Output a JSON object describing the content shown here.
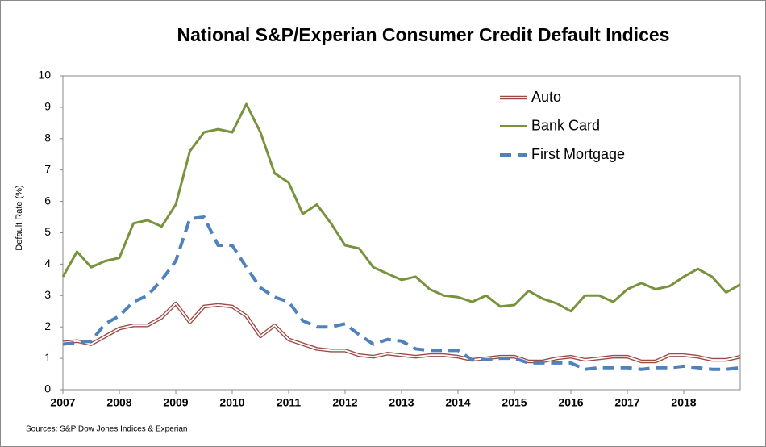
{
  "chart_data": {
    "type": "line",
    "title": "National S&P/Experian Consumer Credit Default Indices",
    "y_label": "Default Rate (%)",
    "source": "Sources: S&P Dow Jones Indices & Experian",
    "x": [
      2007,
      2007.25,
      2007.5,
      2007.75,
      2008,
      2008.25,
      2008.5,
      2008.75,
      2009,
      2009.25,
      2009.5,
      2009.75,
      2010,
      2010.25,
      2010.5,
      2010.75,
      2011,
      2011.25,
      2011.5,
      2011.75,
      2012,
      2012.25,
      2012.5,
      2012.75,
      2013,
      2013.25,
      2013.5,
      2013.75,
      2014,
      2014.25,
      2014.5,
      2014.75,
      2015,
      2015.25,
      2015.5,
      2015.75,
      2016,
      2016.25,
      2016.5,
      2016.75,
      2017,
      2017.25,
      2017.5,
      2017.75,
      2018,
      2018.25,
      2018.5,
      2018.75,
      2019
    ],
    "series": [
      {
        "name": "Auto",
        "color": "#9c4a44",
        "double": true,
        "values": [
          1.5,
          1.55,
          1.45,
          1.7,
          1.95,
          2.05,
          2.05,
          2.3,
          2.75,
          2.15,
          2.65,
          2.7,
          2.65,
          2.35,
          1.7,
          2.05,
          1.6,
          1.45,
          1.3,
          1.25,
          1.25,
          1.1,
          1.05,
          1.15,
          1.1,
          1.05,
          1.1,
          1.1,
          1.05,
          0.95,
          1.0,
          1.05,
          1.05,
          0.9,
          0.9,
          1.0,
          1.05,
          0.95,
          1.0,
          1.05,
          1.05,
          0.9,
          0.9,
          1.1,
          1.1,
          1.05,
          0.95,
          0.95,
          1.05
        ]
      },
      {
        "name": "Bank Card",
        "color": "#77933c",
        "values": [
          3.6,
          4.4,
          3.9,
          4.1,
          4.2,
          5.3,
          5.4,
          5.2,
          5.9,
          7.6,
          8.2,
          8.3,
          8.2,
          9.1,
          8.2,
          6.9,
          6.6,
          5.6,
          5.9,
          5.3,
          4.6,
          4.5,
          3.9,
          3.7,
          3.5,
          3.6,
          3.2,
          3.0,
          2.95,
          2.8,
          3.0,
          2.65,
          2.7,
          3.15,
          2.9,
          2.75,
          2.5,
          3.0,
          3.0,
          2.8,
          3.2,
          3.4,
          3.2,
          3.3,
          3.6,
          3.85,
          3.6,
          3.1,
          3.35
        ]
      },
      {
        "name": "First Mortgage",
        "color": "#4f81bd",
        "dashed": true,
        "values": [
          1.45,
          1.5,
          1.55,
          2.1,
          2.35,
          2.8,
          3.0,
          3.5,
          4.1,
          5.45,
          5.5,
          4.6,
          4.6,
          3.9,
          3.25,
          2.95,
          2.8,
          2.2,
          2.0,
          2.0,
          2.1,
          1.75,
          1.45,
          1.6,
          1.55,
          1.3,
          1.25,
          1.25,
          1.25,
          0.95,
          0.95,
          1.0,
          1.0,
          0.85,
          0.85,
          0.85,
          0.85,
          0.65,
          0.7,
          0.7,
          0.7,
          0.65,
          0.7,
          0.7,
          0.75,
          0.7,
          0.65,
          0.65,
          0.7
        ]
      }
    ],
    "xlim": [
      2007,
      2019
    ],
    "xticks": [
      2007,
      2008,
      2009,
      2010,
      2011,
      2012,
      2013,
      2014,
      2015,
      2016,
      2017,
      2018
    ],
    "ylim": [
      0,
      10
    ],
    "yticks": [
      0,
      1,
      2,
      3,
      4,
      5,
      6,
      7,
      8,
      9,
      10
    ],
    "grid": false,
    "legend": "upper right"
  }
}
